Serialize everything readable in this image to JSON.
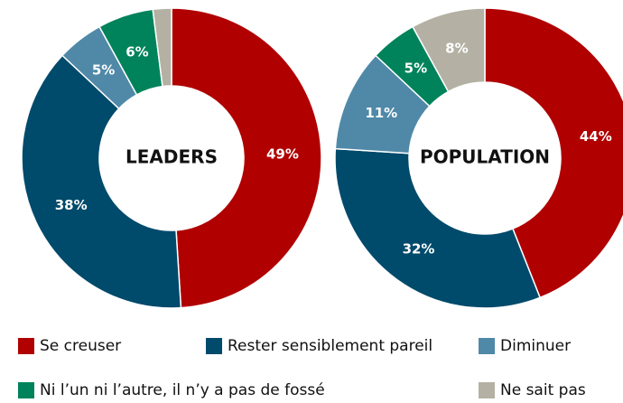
{
  "chart_data": [
    {
      "type": "pie",
      "title": "LEADERS",
      "categories": [
        "Se creuser",
        "Rester sensiblement pareil",
        "Diminuer",
        "Ni l’un ni l’autre, il n’y a pas de fossé",
        "Ne sait pas"
      ],
      "values": [
        49,
        38,
        5,
        6,
        2
      ],
      "value_labels": [
        "49%",
        "38%",
        "5%",
        "6%",
        null
      ],
      "colors": [
        "#b00000",
        "#004a6b",
        "#5089a8",
        "#00835a",
        "#b4b1a4"
      ]
    },
    {
      "type": "pie",
      "title": "POPULATION",
      "categories": [
        "Se creuser",
        "Rester sensiblement pareil",
        "Diminuer",
        "Ni l’un ni l’autre, il n’y a pas de fossé",
        "Ne sait pas"
      ],
      "values": [
        44,
        32,
        11,
        5,
        8
      ],
      "value_labels": [
        "44%",
        "32%",
        "11%",
        "5%",
        "8%"
      ],
      "colors": [
        "#b00000",
        "#004a6b",
        "#5089a8",
        "#00835a",
        "#b4b1a4"
      ]
    }
  ]
}
